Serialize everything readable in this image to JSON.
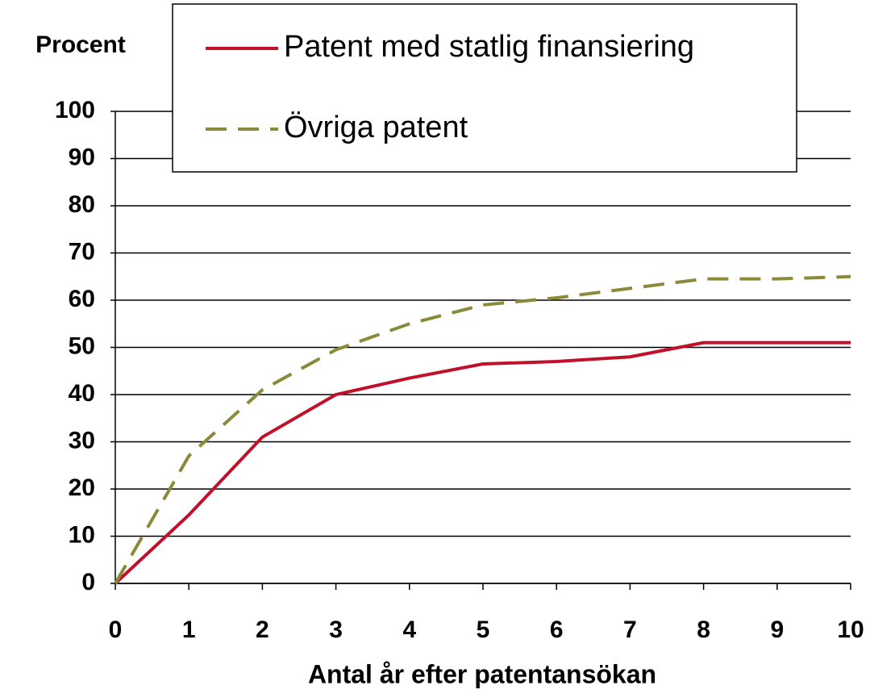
{
  "chart_data": {
    "type": "line",
    "y_label": "Procent",
    "x_label": "Antal år efter patentansökan",
    "x": [
      0,
      1,
      2,
      3,
      4,
      5,
      6,
      7,
      8,
      9,
      10
    ],
    "series": [
      {
        "name": "Patent med statlig finansiering",
        "color": "#c0102a",
        "dash": "solid",
        "values": [
          0,
          14.5,
          31,
          40,
          43.5,
          46.5,
          47,
          48,
          51,
          51,
          51
        ]
      },
      {
        "name": "Övriga patent",
        "color": "#8a8a3a",
        "dash": "dashed",
        "values": [
          0,
          27,
          41,
          49.5,
          55,
          59,
          60.5,
          62.5,
          64.5,
          64.5,
          65
        ]
      }
    ],
    "xlim": [
      0,
      10
    ],
    "xticks": [
      0,
      1,
      2,
      3,
      4,
      5,
      6,
      7,
      8,
      9,
      10
    ],
    "ylim": [
      0,
      100
    ],
    "yticks": [
      0,
      10,
      20,
      30,
      40,
      50,
      60,
      70,
      80,
      90,
      100
    ],
    "grid": true
  }
}
